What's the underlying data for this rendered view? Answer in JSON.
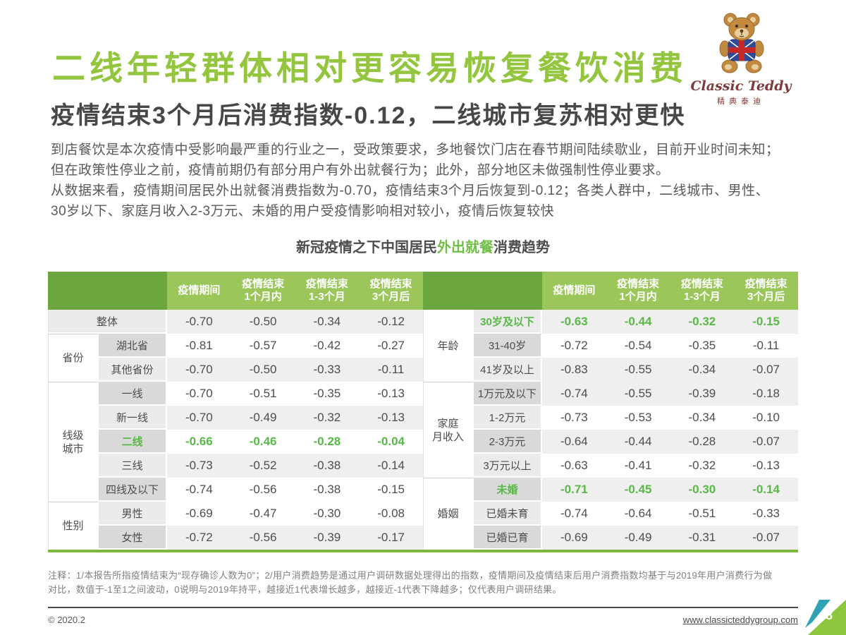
{
  "page": {
    "title": "二线年轻群体相对更容易恢复餐饮消费",
    "subtitle": "疫情结束3个月后消费指数-0.12，二线城市复苏相对更快",
    "paragraph1": "到店餐饮是本次疫情中受影响最严重的行业之一，受政策要求，多地餐饮门店在春节期间陆续歇业，目前开业时间未知；\n但在政策性停业之前，疫情前期仍有部分用户有外出就餐行为；此外，部分地区未做强制性停业要求。",
    "paragraph2": "从数据来看，疫情期间居民外出就餐消费指数为-0.70，疫情结束3个月后恢复到-0.12；各类人群中，二线城市、男性、\n30岁以下、家庭月收入2-3万元、未婚的用户受疫情影响相对较小，疫情后恢复较快"
  },
  "logo": {
    "brand_script": "Classic Teddy",
    "brand_cn": "精典泰迪"
  },
  "table_title": {
    "prefix": "新冠疫情之下中国居民",
    "highlight": "外出就餐",
    "suffix": "消费趋势"
  },
  "tables": {
    "columns": [
      "疫情期间",
      "疫情结束\n1个月内",
      "疫情结束\n1-3个月",
      "疫情结束\n3个月后"
    ],
    "left": {
      "rows": [
        {
          "label": "整体",
          "merged": true,
          "values": [
            "-0.70",
            "-0.50",
            "-0.34",
            "-0.12"
          ]
        },
        {
          "group": "省份",
          "group_rowspan": 2,
          "label": "湖北省",
          "values": [
            "-0.81",
            "-0.57",
            "-0.42",
            "-0.27"
          ]
        },
        {
          "label": "其他省份",
          "values": [
            "-0.70",
            "-0.50",
            "-0.33",
            "-0.11"
          ]
        },
        {
          "group": "线级\n城市",
          "group_rowspan": 5,
          "label": "一线",
          "values": [
            "-0.70",
            "-0.51",
            "-0.35",
            "-0.13"
          ]
        },
        {
          "label": "新一线",
          "values": [
            "-0.70",
            "-0.49",
            "-0.32",
            "-0.13"
          ]
        },
        {
          "label": "二线",
          "highlight": true,
          "values": [
            "-0.66",
            "-0.46",
            "-0.28",
            "-0.04"
          ]
        },
        {
          "label": "三线",
          "values": [
            "-0.73",
            "-0.52",
            "-0.38",
            "-0.14"
          ]
        },
        {
          "label": "四线及以下",
          "values": [
            "-0.74",
            "-0.56",
            "-0.38",
            "-0.15"
          ]
        },
        {
          "group": "性别",
          "group_rowspan": 2,
          "label": "男性",
          "values": [
            "-0.69",
            "-0.47",
            "-0.30",
            "-0.08"
          ]
        },
        {
          "label": "女性",
          "values": [
            "-0.72",
            "-0.56",
            "-0.39",
            "-0.17"
          ]
        }
      ]
    },
    "right": {
      "rows": [
        {
          "group": "年龄",
          "group_rowspan": 3,
          "label": "30岁及以下",
          "highlight": true,
          "values": [
            "-0.63",
            "-0.44",
            "-0.32",
            "-0.15"
          ]
        },
        {
          "label": "31-40岁",
          "values": [
            "-0.72",
            "-0.54",
            "-0.35",
            "-0.11"
          ]
        },
        {
          "label": "41岁及以上",
          "values": [
            "-0.83",
            "-0.55",
            "-0.34",
            "-0.07"
          ]
        },
        {
          "group": "家庭\n月收入",
          "group_rowspan": 4,
          "label": "1万元及以下",
          "values": [
            "-0.74",
            "-0.55",
            "-0.39",
            "-0.18"
          ]
        },
        {
          "label": "1-2万元",
          "values": [
            "-0.73",
            "-0.53",
            "-0.34",
            "-0.10"
          ]
        },
        {
          "label": "2-3万元",
          "values": [
            "-0.64",
            "-0.44",
            "-0.28",
            "-0.07"
          ]
        },
        {
          "label": "3万元以上",
          "values": [
            "-0.63",
            "-0.41",
            "-0.32",
            "-0.13"
          ]
        },
        {
          "group": "婚姻",
          "group_rowspan": 3,
          "label": "未婚",
          "highlight": true,
          "values": [
            "-0.71",
            "-0.45",
            "-0.30",
            "-0.14"
          ]
        },
        {
          "label": "已婚未育",
          "values": [
            "-0.74",
            "-0.64",
            "-0.51",
            "-0.33"
          ]
        },
        {
          "label": "已婚已育",
          "values": [
            "-0.69",
            "-0.49",
            "-0.31",
            "-0.07"
          ]
        }
      ]
    }
  },
  "footnote": {
    "text": "注释：1/本报告所指疫情结束为“现存确诊人数为0”；2/用户消费趋势是通过用户调研数据处理得出的指数，疫情期间及疫情结束后用户消费指数均基于与2019年用户消费行为做\n对比，数值于-1至1之间波动，0说明与2019年持平，越接近1代表增长越多，越接近-1代表下降越多；仅代表用户调研结果。"
  },
  "footer": {
    "copyright": "© 2020.2",
    "website": "www.classicteddygroup.com",
    "page_number": "8"
  },
  "colors": {
    "title_green": "#93C63E",
    "highlight_green": "#58B947",
    "header_dark_green": "#6CA63F",
    "header_light_green": "#9AC65A",
    "corner_lime": "#8DC63F",
    "corner_teal": "#2FA3B4"
  }
}
